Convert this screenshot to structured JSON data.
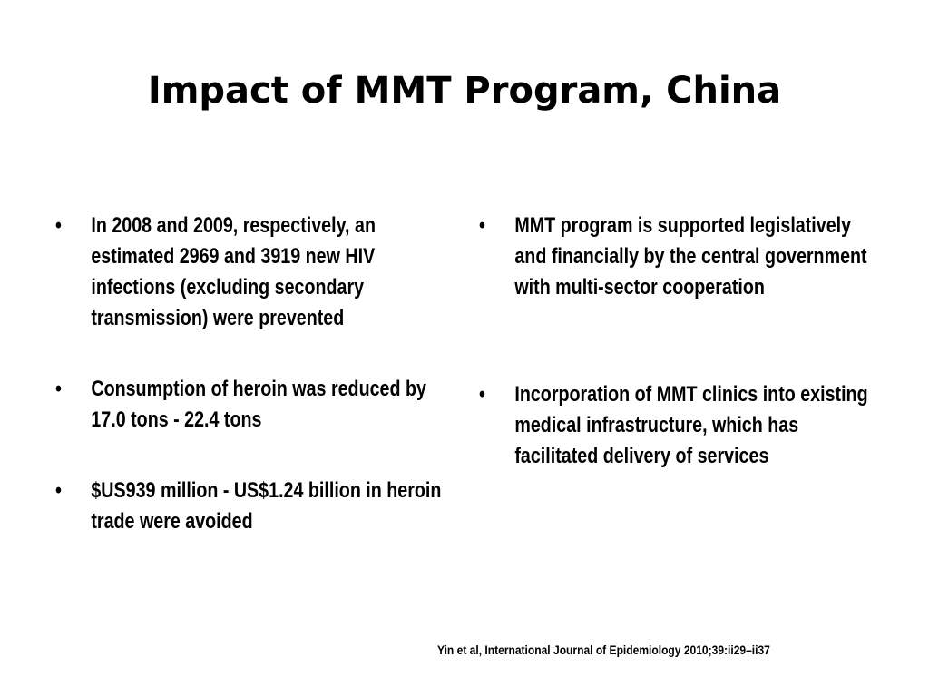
{
  "slide": {
    "title": "Impact of MMT Program, China",
    "bullet_glyph": "•",
    "left_column": [
      "In 2008 and 2009, respectively, an estimated 2969 and 3919 new HIV infections (excluding secondary transmission) were prevented",
      "Consumption of heroin was reduced by 17.0 tons - 22.4 tons",
      "$US939 million - US$1.24 billion in heroin trade were avoided"
    ],
    "right_column": [
      "MMT program is supported legislatively and financially by the central government with multi-sector cooperation",
      "Incorporation of MMT clinics into existing medical infrastructure, which has facilitated delivery of services"
    ],
    "citation": "Yin et al, International Journal of Epidemiology 2010;39:ii29–ii37"
  }
}
